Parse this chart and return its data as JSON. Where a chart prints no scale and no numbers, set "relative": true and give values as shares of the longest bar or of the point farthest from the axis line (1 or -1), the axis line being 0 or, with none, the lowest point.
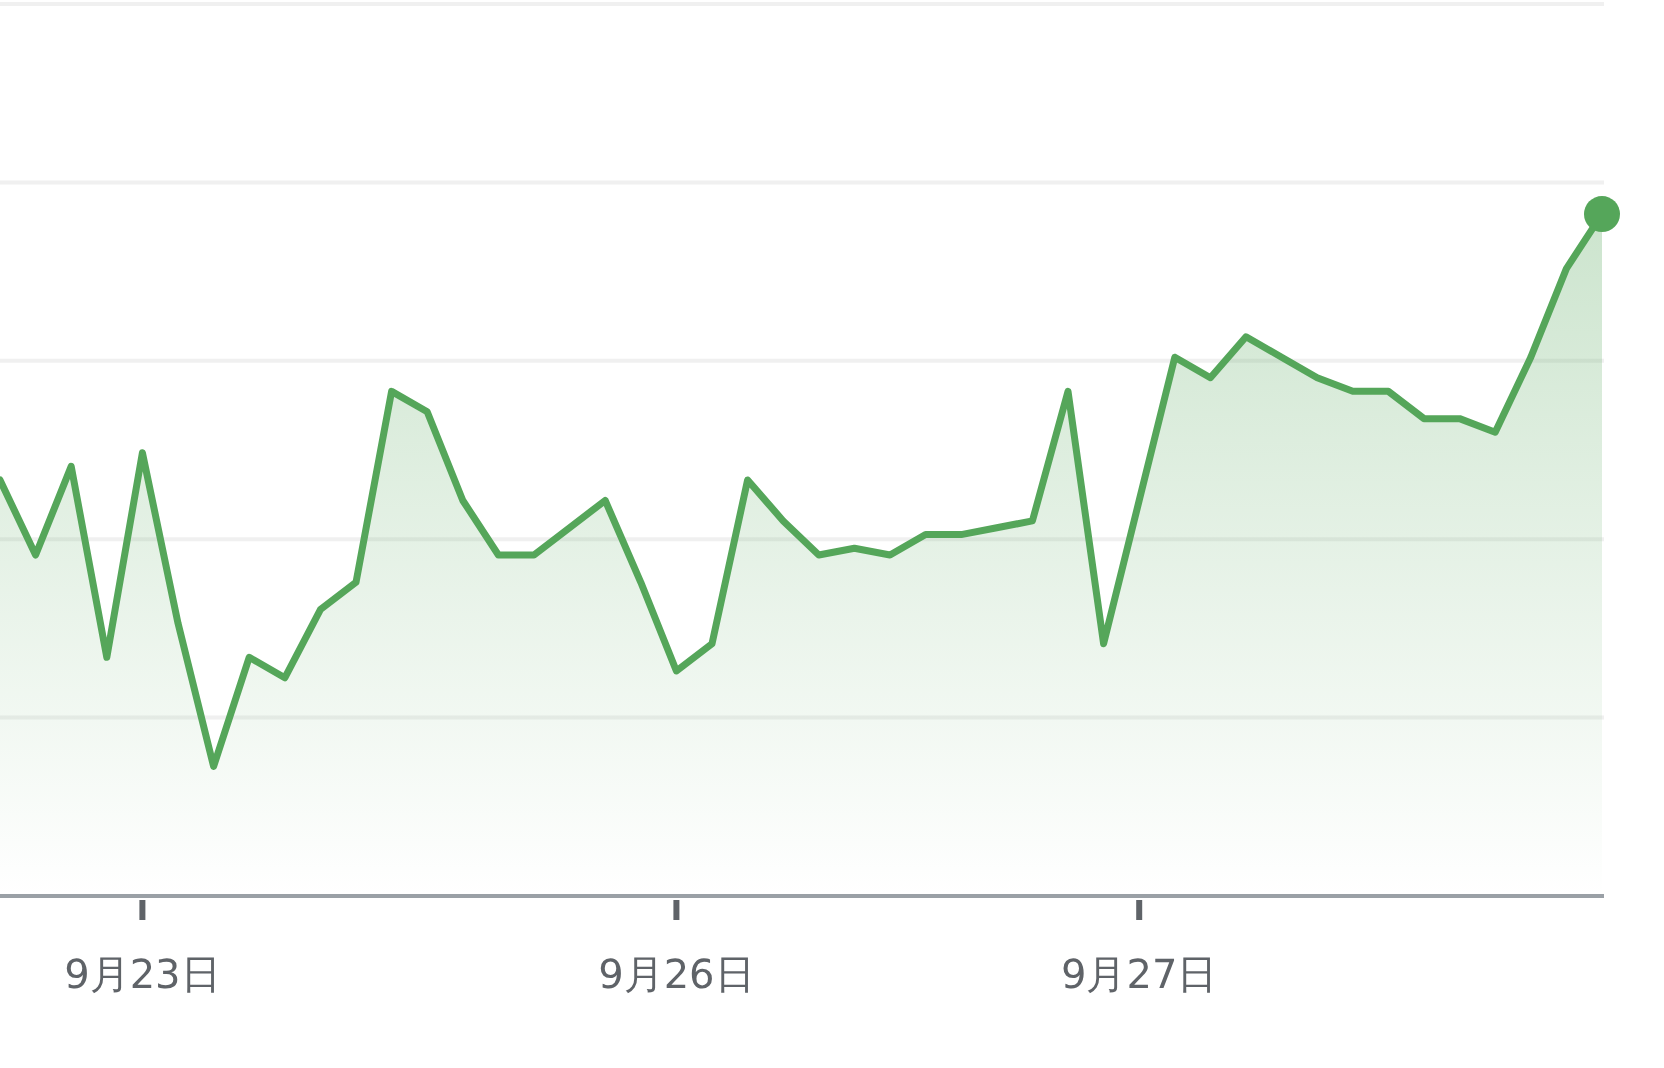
{
  "chart_data": {
    "type": "area",
    "relative": true,
    "grid": "y",
    "categories": [
      null,
      null,
      null,
      null,
      "9月23日",
      null,
      null,
      null,
      null,
      null,
      null,
      null,
      null,
      null,
      null,
      null,
      null,
      null,
      null,
      "9月26日",
      null,
      null,
      null,
      null,
      null,
      null,
      null,
      null,
      null,
      null,
      null,
      null,
      "9月27日",
      null,
      null,
      null,
      null,
      null,
      null,
      null,
      null,
      null,
      null,
      null,
      null,
      null
    ],
    "series": [
      {
        "color": "#55a65a",
        "marker": "none",
        "values": [
          0.61,
          0.5,
          0.63,
          0.35,
          0.65,
          0.4,
          0.19,
          0.35,
          0.32,
          0.42,
          0.46,
          0.74,
          0.71,
          0.58,
          0.5,
          0.5,
          0.54,
          0.58,
          0.46,
          0.33,
          0.37,
          0.61,
          0.55,
          0.5,
          0.51,
          0.5,
          0.53,
          0.53,
          0.54,
          0.55,
          0.74,
          0.37,
          0.58,
          0.79,
          0.76,
          0.82,
          0.79,
          0.76,
          0.74,
          0.74,
          0.7,
          0.7,
          0.68,
          0.79,
          0.92,
          1.0
        ]
      },
      {
        "type": "scatter",
        "color": "#55a65a",
        "marker": "circle",
        "values": [
          null,
          null,
          null,
          null,
          null,
          null,
          null,
          null,
          null,
          null,
          null,
          null,
          null,
          null,
          null,
          null,
          null,
          null,
          null,
          null,
          null,
          null,
          null,
          null,
          null,
          null,
          null,
          null,
          null,
          null,
          null,
          null,
          null,
          null,
          null,
          null,
          null,
          null,
          null,
          null,
          null,
          null,
          null,
          null,
          null,
          1.0
        ]
      }
    ]
  }
}
